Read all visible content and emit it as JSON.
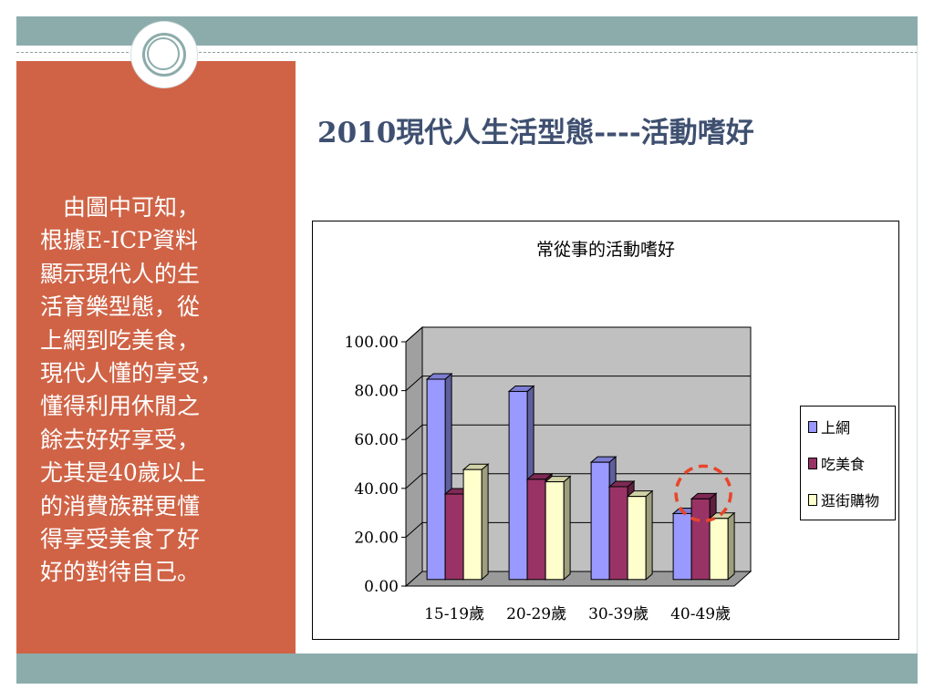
{
  "slide": {
    "title": "2010現代人生活型態----活動嗜好",
    "body_text": "　由圖中可知，\n根據E-ICP資料\n顯示現代人的生\n活育樂型態，從\n上網到吃美食，\n現代人懂的享受，\n懂得利用休閒之\n餘去好好享受，\n尤其是40歲以上\n的消費族群更懂\n得享受美食了好\n好的對待自己。"
  },
  "colors": {
    "side_panel": "#d06346",
    "bands": "#8cacab",
    "title_text": "#3e4f70",
    "highlight_circle": "#e8452a"
  },
  "chart_data": {
    "type": "bar",
    "title": "常從事的活動嗜好",
    "categories": [
      "15-19歲",
      "20-29歲",
      "30-39歲",
      "40-49歲"
    ],
    "series": [
      {
        "name": "上網",
        "values": [
          82,
          77,
          48,
          27
        ],
        "color": "#9999ff"
      },
      {
        "name": "吃美食",
        "values": [
          35,
          41,
          38,
          33
        ],
        "color": "#993366"
      },
      {
        "name": "逛街購物",
        "values": [
          45,
          40,
          34,
          25
        ],
        "color": "#ffffcc"
      }
    ],
    "ylim": [
      0,
      100
    ],
    "yticks": [
      "0.00",
      "20.00",
      "40.00",
      "60.00",
      "80.00",
      "100.00"
    ],
    "ytick_values": [
      0,
      20,
      40,
      60,
      80,
      100
    ],
    "grid": true,
    "three_d": true,
    "plot_background": "#c0c0c0",
    "legend_position": "right",
    "annotation": "dashed circle highlighting 40-49歲 吃美食 bar"
  }
}
